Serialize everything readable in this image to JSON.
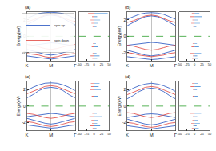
{
  "chart_data": [
    {
      "type": "line",
      "title": "(a)",
      "ylabel": "Energy(eV)",
      "x": [
        0,
        0.25,
        0.5,
        0.75,
        1,
        1.25,
        1.5,
        1.75,
        2
      ],
      "xlim": [
        0,
        2
      ],
      "xticks": [
        {
          "value": 0,
          "label": "K"
        },
        {
          "value": 1,
          "label": "M"
        },
        {
          "value": 2,
          "label": "Γ"
        }
      ],
      "ylim": [
        -3,
        3
      ],
      "yticks": [
        -2,
        0,
        2
      ],
      "grid": "x",
      "fermi_level": 0,
      "legend": "top right",
      "series": [
        {
          "name": "spin up",
          "color": "#1f4fbf",
          "values": [
            1.4,
            1.8,
            2.2,
            2.5,
            2.6,
            2.5,
            2.2,
            1.8,
            1.4
          ]
        },
        {
          "color": "#1f4fbf",
          "values": [
            2.2,
            2.5,
            2.8,
            2.9,
            2.95,
            2.9,
            2.8,
            2.5,
            2.2
          ]
        },
        {
          "color": "#1f4fbf",
          "values": [
            -1.2,
            -1.1,
            -0.95,
            -0.85,
            -0.8,
            -0.85,
            -0.95,
            -1.1,
            -1.2
          ]
        },
        {
          "color": "#1f4fbf",
          "values": [
            -1.6,
            -1.8,
            -2.0,
            -2.2,
            -2.3,
            -2.2,
            -2.0,
            -1.8,
            -1.6
          ]
        },
        {
          "color": "#1f4fbf",
          "values": [
            -2.4,
            -2.5,
            -2.6,
            -2.7,
            -2.8,
            -2.7,
            -2.6,
            -2.5,
            -2.4
          ]
        },
        {
          "name": "spin down",
          "color": "#e0403a",
          "values": [
            1.8,
            2.0,
            2.3,
            2.6,
            2.7,
            2.6,
            2.3,
            2.0,
            1.8
          ]
        },
        {
          "color": "#e0403a",
          "values": [
            -1.0,
            -1.1,
            -1.3,
            -1.5,
            -1.6,
            -1.5,
            -1.3,
            -1.1,
            -1.0
          ]
        },
        {
          "color": "#e0403a",
          "values": [
            -2.1,
            -2.2,
            -2.3,
            -2.5,
            -2.6,
            -2.5,
            -2.3,
            -2.2,
            -2.1
          ]
        }
      ]
    },
    {
      "type": "bar",
      "orientation": "horizontal",
      "y": [
        -2.7,
        -2.4,
        -2.1,
        -1.7,
        -1.3,
        -0.9,
        1.2,
        1.6,
        2.0,
        2.4,
        2.8
      ],
      "xlim": [
        -50,
        50
      ],
      "xticks": [
        -50,
        -25,
        0,
        25,
        50
      ],
      "ylim": [
        -3,
        3
      ],
      "tick_labels": "x",
      "fermi_level": 0,
      "series": [
        {
          "color": "#2a7fd4",
          "values": [
            10,
            18,
            8,
            25,
            12,
            6,
            8,
            14,
            20,
            10,
            45
          ]
        },
        {
          "color": "#e0403a",
          "values": [
            -6,
            -12,
            -5,
            -15,
            -8,
            -4,
            -5,
            -9,
            -12,
            -7,
            -20
          ]
        }
      ]
    },
    {
      "type": "line",
      "title": "(b)",
      "ylabel": "Energy(eV)",
      "x": [
        0,
        0.25,
        0.5,
        0.75,
        1,
        1.25,
        1.5,
        1.75,
        2
      ],
      "xlim": [
        0,
        2
      ],
      "xticks": [
        {
          "value": 0,
          "label": "K"
        },
        {
          "value": 1,
          "label": "M"
        },
        {
          "value": 2,
          "label": "Γ"
        }
      ],
      "ylim": [
        -3,
        3
      ],
      "yticks": [
        -2,
        0,
        2
      ],
      "grid": "x",
      "fermi_level": 0,
      "series": [
        {
          "color": "#1f4fbf",
          "values": [
            1.3,
            1.7,
            2.1,
            2.4,
            2.5,
            2.4,
            2.1,
            1.7,
            1.3
          ]
        },
        {
          "color": "#1f4fbf",
          "values": [
            2.1,
            2.4,
            2.7,
            2.85,
            2.9,
            2.85,
            2.7,
            2.4,
            2.1
          ]
        },
        {
          "color": "#1f4fbf",
          "values": [
            -1.1,
            -1.0,
            -0.9,
            -0.8,
            -0.75,
            -0.8,
            -0.9,
            -1.0,
            -1.1
          ]
        },
        {
          "color": "#1f4fbf",
          "values": [
            -1.7,
            -1.9,
            -2.1,
            -2.3,
            -2.4,
            -2.3,
            -2.1,
            -1.9,
            -1.7
          ]
        },
        {
          "color": "#1f4fbf",
          "values": [
            -2.5,
            -2.6,
            -2.7,
            -2.8,
            -2.85,
            -2.8,
            -2.7,
            -2.6,
            -2.5
          ]
        },
        {
          "color": "#e0403a",
          "values": [
            1.7,
            1.9,
            2.2,
            2.5,
            2.6,
            2.5,
            2.2,
            1.9,
            1.7
          ]
        },
        {
          "color": "#e0403a",
          "values": [
            -1.1,
            -1.2,
            -1.4,
            -1.6,
            -1.7,
            -1.6,
            -1.4,
            -1.2,
            -1.1
          ]
        },
        {
          "color": "#e0403a",
          "values": [
            -2.0,
            -2.1,
            -2.3,
            -2.4,
            -2.5,
            -2.4,
            -2.3,
            -2.1,
            -2.0
          ]
        }
      ]
    },
    {
      "type": "bar",
      "orientation": "horizontal",
      "y": [
        -2.7,
        -2.4,
        -2.1,
        -1.7,
        -1.3,
        -0.9,
        1.2,
        1.6,
        2.0,
        2.4,
        2.8
      ],
      "xlim": [
        -50,
        50
      ],
      "xticks": [
        -50,
        -25,
        0,
        25,
        50
      ],
      "ylim": [
        -3,
        3
      ],
      "tick_labels": "x",
      "fermi_level": 0,
      "series": [
        {
          "color": "#2a7fd4",
          "values": [
            12,
            9,
            22,
            7,
            15,
            8,
            6,
            18,
            11,
            24,
            16
          ]
        },
        {
          "color": "#e0403a",
          "values": [
            -8,
            -5,
            -14,
            -4,
            -10,
            -6,
            -4,
            -11,
            -7,
            -15,
            -9
          ]
        }
      ]
    },
    {
      "type": "line",
      "title": "(c)",
      "ylabel": "Energy(eV)",
      "x": [
        0,
        0.25,
        0.5,
        0.75,
        1,
        1.25,
        1.5,
        1.75,
        2
      ],
      "xlim": [
        0,
        2
      ],
      "xticks": [
        {
          "value": 0,
          "label": "K"
        },
        {
          "value": 1,
          "label": "M"
        },
        {
          "value": 2,
          "label": "Γ"
        }
      ],
      "ylim": [
        -3,
        3
      ],
      "yticks": [
        -2,
        0,
        2
      ],
      "grid": "x",
      "fermi_level": 0,
      "series": [
        {
          "color": "#1f4fbf",
          "values": [
            1.0,
            1.4,
            1.9,
            2.2,
            2.3,
            2.2,
            1.9,
            1.4,
            1.0
          ]
        },
        {
          "color": "#1f4fbf",
          "values": [
            1.9,
            2.3,
            2.6,
            2.8,
            2.85,
            2.8,
            2.6,
            2.3,
            1.9
          ]
        },
        {
          "color": "#1f4fbf",
          "values": [
            -1.3,
            -1.2,
            -1.05,
            -0.95,
            -0.9,
            -0.95,
            -1.05,
            -1.2,
            -1.3
          ]
        },
        {
          "color": "#1f4fbf",
          "values": [
            -1.5,
            -1.7,
            -1.9,
            -2.1,
            -2.2,
            -2.1,
            -1.9,
            -1.7,
            -1.5
          ]
        },
        {
          "color": "#1f4fbf",
          "values": [
            -2.3,
            -2.4,
            -2.5,
            -2.65,
            -2.7,
            -2.65,
            -2.5,
            -2.4,
            -2.3
          ]
        },
        {
          "color": "#e0403a",
          "values": [
            1.5,
            1.8,
            2.1,
            2.4,
            2.5,
            2.4,
            2.1,
            1.8,
            1.5
          ]
        },
        {
          "color": "#e0403a",
          "values": [
            -0.9,
            -1.0,
            -1.2,
            -1.4,
            -1.5,
            -1.4,
            -1.2,
            -1.0,
            -0.9
          ]
        },
        {
          "color": "#e0403a",
          "values": [
            -1.9,
            -2.0,
            -2.2,
            -2.4,
            -2.5,
            -2.4,
            -2.2,
            -2.0,
            -1.9
          ]
        }
      ]
    },
    {
      "type": "bar",
      "orientation": "horizontal",
      "y": [
        -2.7,
        -2.4,
        -2.1,
        -1.7,
        -1.3,
        -0.9,
        1.2,
        1.6,
        2.0,
        2.4,
        2.8
      ],
      "xlim": [
        -50,
        50
      ],
      "xticks": [
        -50,
        -25,
        0,
        25,
        50
      ],
      "ylim": [
        -3,
        3
      ],
      "tick_labels": "x",
      "fermi_level": 0,
      "series": [
        {
          "color": "#2a7fd4",
          "values": [
            8,
            20,
            10,
            14,
            26,
            9,
            12,
            7,
            22,
            15,
            18
          ]
        },
        {
          "color": "#e0403a",
          "values": [
            -5,
            -13,
            -7,
            -9,
            -16,
            -6,
            -8,
            -4,
            -14,
            -10,
            -11
          ]
        }
      ]
    },
    {
      "type": "line",
      "title": "(d)",
      "ylabel": "Energy(eV)",
      "x": [
        0,
        0.25,
        0.5,
        0.75,
        1,
        1.25,
        1.5,
        1.75,
        2
      ],
      "xlim": [
        0,
        2
      ],
      "xticks": [
        {
          "value": 0,
          "label": "K"
        },
        {
          "value": 1,
          "label": "M"
        },
        {
          "value": 2,
          "label": "Γ"
        }
      ],
      "ylim": [
        -3,
        3
      ],
      "yticks": [
        -2,
        0,
        2
      ],
      "grid": "x",
      "fermi_level": 0,
      "series": [
        {
          "color": "#1f4fbf",
          "values": [
            0.9,
            1.3,
            1.8,
            2.1,
            2.2,
            2.1,
            1.8,
            1.3,
            0.9
          ]
        },
        {
          "color": "#1f4fbf",
          "values": [
            1.8,
            2.2,
            2.5,
            2.7,
            2.8,
            2.7,
            2.5,
            2.2,
            1.8
          ]
        },
        {
          "color": "#1f4fbf",
          "values": [
            -1.4,
            -1.3,
            -1.15,
            -1.0,
            -0.95,
            -1.0,
            -1.15,
            -1.3,
            -1.4
          ]
        },
        {
          "color": "#1f4fbf",
          "values": [
            -1.6,
            -1.8,
            -2.0,
            -2.2,
            -2.3,
            -2.2,
            -2.0,
            -1.8,
            -1.6
          ]
        },
        {
          "color": "#1f4fbf",
          "values": [
            -2.4,
            -2.5,
            -2.6,
            -2.7,
            -2.8,
            -2.7,
            -2.6,
            -2.5,
            -2.4
          ]
        },
        {
          "color": "#e0403a",
          "values": [
            1.4,
            1.7,
            2.0,
            2.3,
            2.4,
            2.3,
            2.0,
            1.7,
            1.4
          ]
        },
        {
          "color": "#e0403a",
          "values": [
            -0.8,
            -0.9,
            -1.1,
            -1.3,
            -1.4,
            -1.3,
            -1.1,
            -0.9,
            -0.8
          ]
        },
        {
          "color": "#e0403a",
          "values": [
            -2.0,
            -2.1,
            -2.3,
            -2.5,
            -2.6,
            -2.5,
            -2.3,
            -2.1,
            -2.0
          ]
        }
      ]
    },
    {
      "type": "bar",
      "orientation": "horizontal",
      "y": [
        -2.7,
        -2.4,
        -2.1,
        -1.7,
        -1.3,
        -0.9,
        1.2,
        1.6,
        2.0,
        2.4,
        2.8
      ],
      "xlim": [
        -50,
        50
      ],
      "xticks": [
        -50,
        -25,
        0,
        25,
        50
      ],
      "ylim": [
        -3,
        3
      ],
      "tick_labels": "x",
      "fermi_level": 0,
      "series": [
        {
          "color": "#2a7fd4",
          "values": [
            14,
            7,
            18,
            11,
            9,
            22,
            10,
            16,
            8,
            20,
            12
          ]
        },
        {
          "color": "#e0403a",
          "values": [
            -9,
            -4,
            -11,
            -7,
            -6,
            -14,
            -6,
            -10,
            -5,
            -13,
            -8
          ]
        }
      ]
    }
  ]
}
